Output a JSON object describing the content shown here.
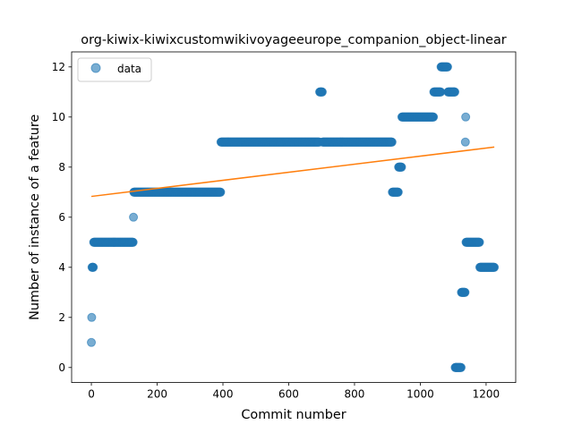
{
  "chart_data": {
    "type": "scatter",
    "title": "org-kiwix-kiwixcustomwikivoyageeurope_companion_object-linear",
    "xlabel": "Commit number",
    "ylabel": "Number of instance of a feature",
    "xlim": [
      -60,
      1290
    ],
    "ylim": [
      -0.6,
      12.6
    ],
    "xticks": [
      0,
      200,
      400,
      600,
      800,
      1000,
      1200
    ],
    "yticks": [
      0,
      2,
      4,
      6,
      8,
      10,
      12
    ],
    "xtick_labels": [
      "0",
      "200",
      "400",
      "600",
      "800",
      "1000",
      "1200"
    ],
    "ytick_labels": [
      "0",
      "2",
      "4",
      "6",
      "8",
      "10",
      "12"
    ],
    "grid": false,
    "legend_position": "top-left",
    "series": [
      {
        "name": "data",
        "kind": "scatter",
        "color": "#1f77b4",
        "runs": [
          {
            "x_start": 0,
            "x_end": 0,
            "y": 1
          },
          {
            "x_start": 1,
            "x_end": 1,
            "y": 2
          },
          {
            "x_start": 2,
            "x_end": 6,
            "y": 4
          },
          {
            "x_start": 7,
            "x_end": 127,
            "y": 5
          },
          {
            "x_start": 128,
            "x_end": 128,
            "y": 6
          },
          {
            "x_start": 129,
            "x_end": 393,
            "y": 7
          },
          {
            "x_start": 394,
            "x_end": 693,
            "y": 9
          },
          {
            "x_start": 694,
            "x_end": 702,
            "y": 11
          },
          {
            "x_start": 703,
            "x_end": 914,
            "y": 9
          },
          {
            "x_start": 915,
            "x_end": 933,
            "y": 7
          },
          {
            "x_start": 934,
            "x_end": 943,
            "y": 8
          },
          {
            "x_start": 944,
            "x_end": 1040,
            "y": 10
          },
          {
            "x_start": 1041,
            "x_end": 1062,
            "y": 11
          },
          {
            "x_start": 1063,
            "x_end": 1083,
            "y": 12
          },
          {
            "x_start": 1084,
            "x_end": 1105,
            "y": 11
          },
          {
            "x_start": 1106,
            "x_end": 1124,
            "y": 0
          },
          {
            "x_start": 1125,
            "x_end": 1136,
            "y": 3
          },
          {
            "x_start": 1137,
            "x_end": 1137,
            "y": 9
          },
          {
            "x_start": 1138,
            "x_end": 1138,
            "y": 10
          },
          {
            "x_start": 1139,
            "x_end": 1180,
            "y": 5
          },
          {
            "x_start": 1181,
            "x_end": 1225,
            "y": 4
          }
        ]
      },
      {
        "kind": "line",
        "color": "#ff7f0e",
        "x": [
          0,
          1225
        ],
        "y": [
          6.83,
          8.8
        ]
      }
    ]
  }
}
